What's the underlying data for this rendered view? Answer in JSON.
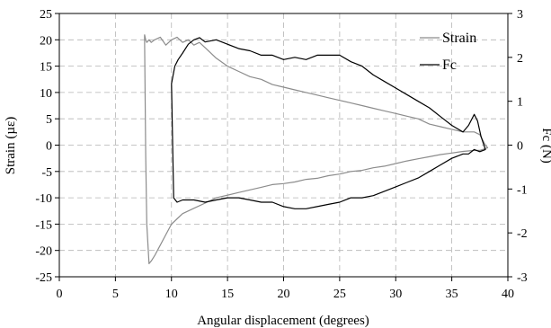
{
  "chart_data": {
    "type": "line",
    "xlabel": "Angular displacement (degrees)",
    "ylabel": "Strain (µε)",
    "y2label": "Fc (N)",
    "xlim": [
      0,
      40
    ],
    "ylim": [
      -25,
      25
    ],
    "y2lim": [
      -3,
      3
    ],
    "xticks": [
      0,
      5,
      10,
      15,
      20,
      25,
      30,
      35,
      40
    ],
    "yticks": [
      -25,
      -20,
      -15,
      -10,
      -5,
      0,
      5,
      10,
      15,
      20,
      25
    ],
    "y2ticks": [
      -3,
      -2,
      -1,
      0,
      1,
      2,
      3
    ],
    "grid": true,
    "legend_position": "top-right",
    "series": [
      {
        "name": "Strain",
        "axis": "left",
        "color": "#8c8c8c",
        "x": [
          7.6,
          7.7,
          7.8,
          8.0,
          8.2,
          8.5,
          9.0,
          9.5,
          10.0,
          10.5,
          11.0,
          11.5,
          12.0,
          12.5,
          13.0,
          14.0,
          15.0,
          16.0,
          17.0,
          18.0,
          19.0,
          20.0,
          21.0,
          22.0,
          23.0,
          24.0,
          25.0,
          26.0,
          27.0,
          28.0,
          29.0,
          30.0,
          31.0,
          32.0,
          33.0,
          34.0,
          35.0,
          36.0,
          37.0,
          37.5,
          38.0,
          38.2,
          37.5,
          37.0,
          36.0,
          35.0,
          34.0,
          33.0,
          32.0,
          31.0,
          30.0,
          29.0,
          28.0,
          27.0,
          26.0,
          25.0,
          24.0,
          23.0,
          22.0,
          21.0,
          20.0,
          19.0,
          18.0,
          17.0,
          16.0,
          15.0,
          14.0,
          13.0,
          12.0,
          11.0,
          10.5,
          10.0,
          9.5,
          9.0,
          8.5,
          8.2,
          8.0,
          7.8,
          7.7,
          7.6
        ],
        "y": [
          21,
          20,
          19.5,
          20,
          19.5,
          20,
          20.5,
          19,
          20,
          20.5,
          19.5,
          20,
          19,
          19.5,
          18.5,
          16.5,
          15,
          14,
          13,
          12.5,
          11.5,
          11,
          10.5,
          10,
          9.5,
          9,
          8.5,
          8,
          7.5,
          7,
          6.5,
          6,
          5.5,
          5,
          4,
          3.5,
          3,
          2.5,
          2.5,
          2,
          0,
          -0.5,
          -1,
          -1,
          -1.2,
          -1.5,
          -1.8,
          -2.2,
          -2.6,
          -3,
          -3.5,
          -4,
          -4.3,
          -4.8,
          -5,
          -5.5,
          -5.8,
          -6.3,
          -6.5,
          -7,
          -7.3,
          -7.5,
          -8,
          -8.5,
          -9,
          -9.5,
          -10,
          -11,
          -12,
          -13,
          -14,
          -15,
          -17,
          -19,
          -21,
          -22,
          -22.5,
          -15,
          -2,
          21
        ]
      },
      {
        "name": "Fc",
        "axis": "right",
        "color": "#000000",
        "x": [
          10.0,
          10.3,
          10.6,
          11.0,
          11.5,
          12.0,
          12.5,
          13.0,
          14.0,
          15.0,
          16.0,
          17.0,
          18.0,
          19.0,
          20.0,
          21.0,
          22.0,
          23.0,
          24.0,
          25.0,
          26.0,
          27.0,
          28.0,
          29.0,
          30.0,
          31.0,
          32.0,
          33.0,
          34.0,
          35.0,
          36.0,
          36.5,
          37.0,
          37.3,
          37.6,
          38.0,
          37.5,
          37.0,
          36.5,
          36.0,
          35.0,
          34.0,
          33.0,
          32.0,
          31.0,
          30.0,
          29.0,
          28.0,
          27.0,
          26.0,
          25.0,
          24.0,
          23.0,
          22.0,
          21.0,
          20.0,
          19.0,
          18.0,
          17.0,
          16.0,
          15.0,
          14.0,
          13.0,
          12.0,
          11.0,
          10.5,
          10.2,
          10.0
        ],
        "y": [
          1.4,
          1.8,
          1.95,
          2.1,
          2.3,
          2.4,
          2.45,
          2.35,
          2.4,
          2.3,
          2.2,
          2.15,
          2.05,
          2.05,
          1.95,
          2.0,
          1.95,
          2.05,
          2.05,
          2.05,
          1.9,
          1.8,
          1.6,
          1.45,
          1.3,
          1.15,
          1.0,
          0.85,
          0.65,
          0.45,
          0.3,
          0.45,
          0.7,
          0.55,
          0.2,
          -0.1,
          -0.15,
          -0.1,
          -0.2,
          -0.2,
          -0.3,
          -0.45,
          -0.6,
          -0.75,
          -0.85,
          -0.95,
          -1.05,
          -1.15,
          -1.2,
          -1.2,
          -1.3,
          -1.35,
          -1.4,
          -1.45,
          -1.45,
          -1.4,
          -1.3,
          -1.3,
          -1.25,
          -1.2,
          -1.2,
          -1.25,
          -1.3,
          -1.25,
          -1.25,
          -1.3,
          -1.2,
          1.4
        ]
      }
    ]
  }
}
